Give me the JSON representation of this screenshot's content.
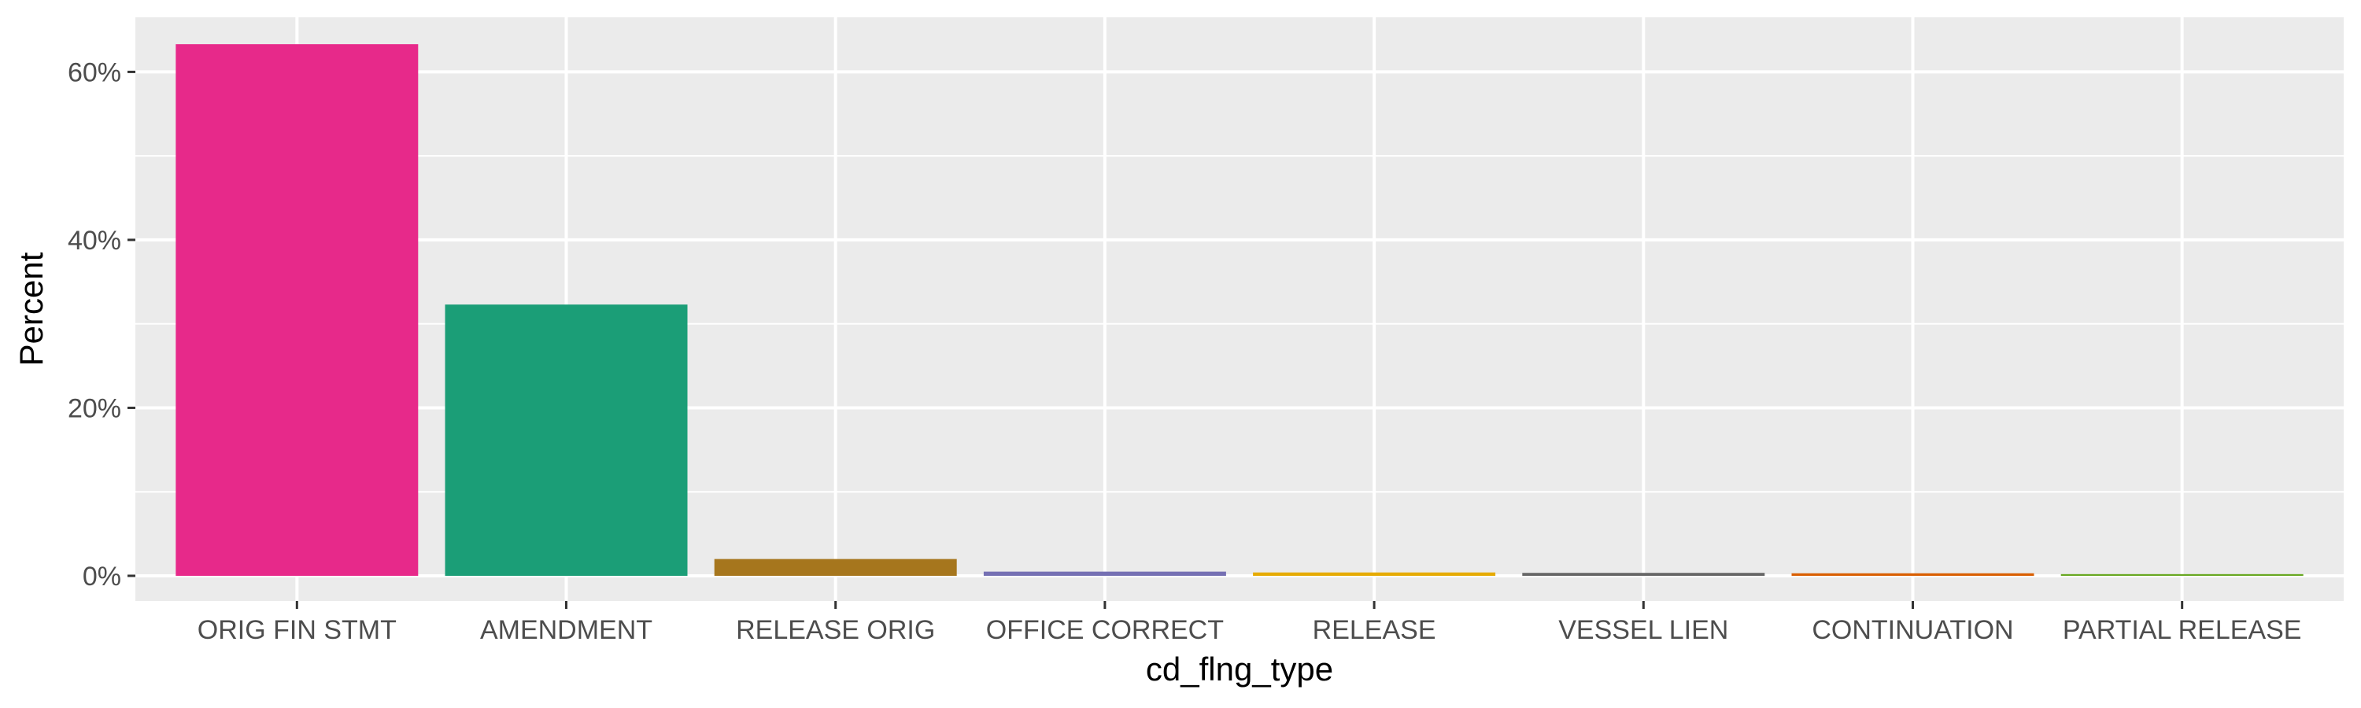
{
  "chart_data": {
    "type": "bar",
    "title": "",
    "xlabel": "cd_flng_type",
    "ylabel": "Percent",
    "categories": [
      "ORIG FIN STMT",
      "AMENDMENT",
      "RELEASE ORIG",
      "OFFICE CORRECT",
      "RELEASE",
      "VESSEL LIEN",
      "CONTINUATION",
      "PARTIAL RELEASE"
    ],
    "values": [
      63.3,
      32.3,
      2.0,
      0.5,
      0.4,
      0.35,
      0.3,
      0.2
    ],
    "colors": [
      "#e7298a",
      "#1b9e77",
      "#a6761d",
      "#7570b3",
      "#e6ab02",
      "#666666",
      "#d95f02",
      "#66a61e"
    ],
    "ylim": [
      -3,
      66.5
    ],
    "yticks": [
      0,
      20,
      40,
      60
    ],
    "ytick_labels": [
      "0%",
      "20%",
      "40%",
      "60%"
    ],
    "grid": true,
    "legend": "none",
    "panel_background": "#ebebeb",
    "grid_color": "#ffffff"
  }
}
